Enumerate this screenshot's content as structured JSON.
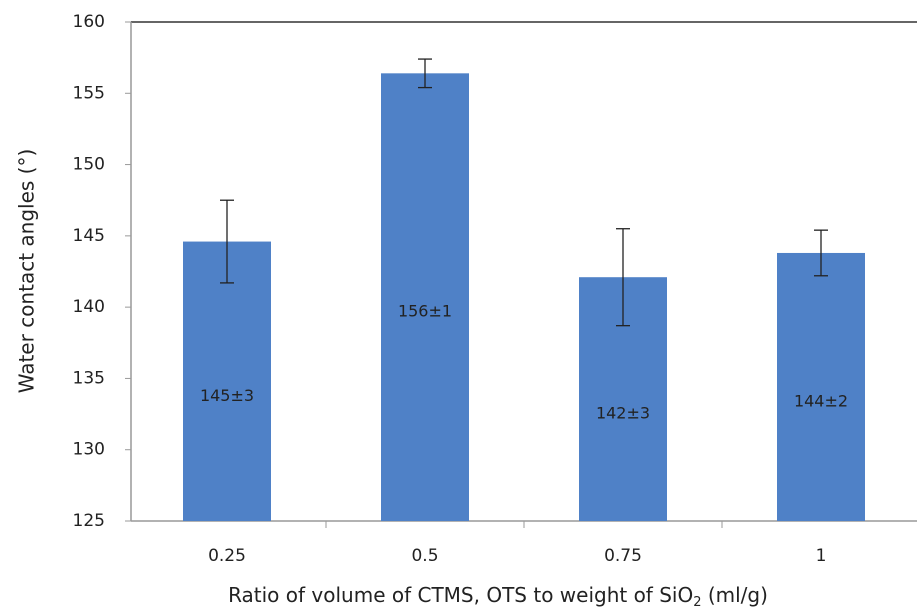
{
  "chart_data": {
    "type": "bar",
    "y_label": "Water contact angles (°)",
    "x_label": [
      "Ratio of  volume of CTMS, OTS to weight of SiO",
      "2",
      " (ml/g)"
    ],
    "categories": [
      "0.25",
      "0.5",
      "0.75",
      "1"
    ],
    "values": [
      144.6,
      156.4,
      142.1,
      143.8
    ],
    "errors": [
      2.9,
      1,
      3.4,
      1.6
    ],
    "value_labels": [
      "145±3",
      "156±1",
      "142±3",
      "144±2"
    ],
    "color": "#4f81c7",
    "ylim": [
      125,
      160
    ],
    "yticks": [
      125,
      130,
      135,
      140,
      145,
      150,
      155,
      160
    ],
    "grid": false
  }
}
